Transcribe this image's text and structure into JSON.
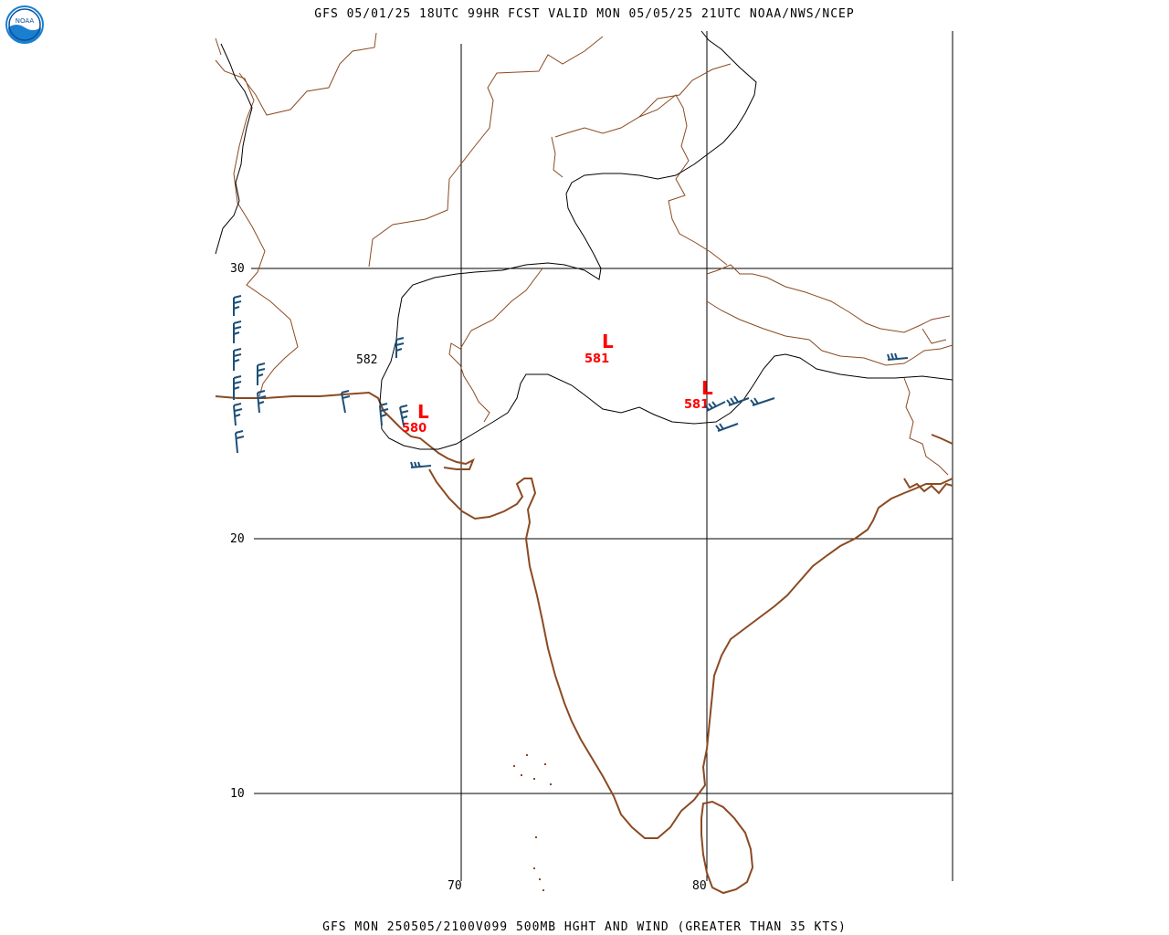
{
  "header": {
    "title": "GFS 05/01/25 18UTC 99HR FCST VALID MON 05/05/25 21UTC NOAA/NWS/NCEP"
  },
  "footer": {
    "title": "GFS MON 250505/2100V099 500MB HGHT AND WIND (GREATER THAN 35 KTS)"
  },
  "logo": {
    "text": "NOAA",
    "color": "#1a7fd0"
  },
  "grid": {
    "lat_labels": [
      "30",
      "20",
      "10"
    ],
    "lon_labels": [
      "70",
      "80"
    ]
  },
  "contours": {
    "line_label": "582",
    "lows": [
      {
        "symbol": "L",
        "value": "581"
      },
      {
        "symbol": "L",
        "value": "580"
      },
      {
        "symbol": "L",
        "value": "581"
      }
    ]
  },
  "colors": {
    "coast": "#8b4a22",
    "border": "#8b4a22",
    "grid": "#000000",
    "contour": "#000000",
    "low_center": "#ff0000",
    "wind_barb": "#1e4f78"
  }
}
